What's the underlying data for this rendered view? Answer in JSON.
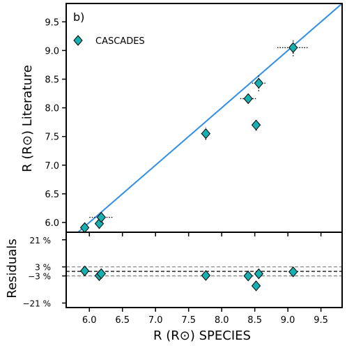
{
  "chart_data": {
    "type": "scatter",
    "panel_label": "b)",
    "xlabel": "R (R⊙) SPECIES",
    "xlim": [
      5.65,
      9.82
    ],
    "x_ticks": [
      6.0,
      6.5,
      7.0,
      7.5,
      8.0,
      8.5,
      9.0,
      9.5
    ],
    "x_tick_labels": [
      "6.0",
      "6.5",
      "7.0",
      "7.5",
      "8.0",
      "8.5",
      "9.0",
      "9.5"
    ],
    "main_panel": {
      "ylabel": "R (R⊙) Literature",
      "ylim": [
        5.83,
        9.82
      ],
      "y_ticks": [
        6.0,
        6.5,
        7.0,
        7.5,
        8.0,
        8.5,
        9.0,
        9.5
      ],
      "y_tick_labels": [
        "6.0",
        "6.5",
        "7.0",
        "7.5",
        "8.0",
        "8.5",
        "9.0",
        "9.5"
      ],
      "one_to_one_line": true,
      "legend": {
        "label": "CASCADES",
        "placement": "top-left"
      },
      "series": [
        {
          "name": "CASCADES",
          "color": "#17b0b0",
          "marker": "diamond",
          "points": [
            {
              "x": 5.93,
              "y": 5.91,
              "xerr": 0.03,
              "yerr": 0.1
            },
            {
              "x": 6.15,
              "y": 5.98,
              "xerr": 0.03,
              "yerr": 0.09
            },
            {
              "x": 6.18,
              "y": 6.09,
              "xerr": 0.18,
              "yerr": 0.08
            },
            {
              "x": 7.76,
              "y": 7.55,
              "xerr": 0.07,
              "yerr": 0.11
            },
            {
              "x": 8.4,
              "y": 8.16,
              "xerr": 0.12,
              "yerr": 0.05
            },
            {
              "x": 8.52,
              "y": 7.7,
              "xerr": 0.04,
              "yerr": 0.1
            },
            {
              "x": 8.56,
              "y": 8.43,
              "xerr": 0.1,
              "yerr": 0.14
            },
            {
              "x": 9.08,
              "y": 9.05,
              "xerr": 0.24,
              "yerr": 0.15
            }
          ]
        }
      ]
    },
    "residual_panel": {
      "ylabel": "Residuals",
      "ylim": [
        -24,
        26
      ],
      "y_ticks": [
        21,
        3,
        -3,
        -21
      ],
      "y_tick_labels": [
        "21 %",
        "3 %",
        "−3 %",
        "−21 %"
      ],
      "reference_lines": [
        {
          "y": 0,
          "style": "dashed",
          "color": "#000000"
        },
        {
          "y": 3,
          "style": "dashed",
          "color": "#808080"
        },
        {
          "y": -3,
          "style": "dashed",
          "color": "#808080"
        }
      ],
      "points": [
        {
          "x": 5.93,
          "y": 0.3
        },
        {
          "x": 6.15,
          "y": -2.8
        },
        {
          "x": 6.18,
          "y": -1.5
        },
        {
          "x": 7.76,
          "y": -2.7
        },
        {
          "x": 8.4,
          "y": -3.0
        },
        {
          "x": 8.52,
          "y": -9.6
        },
        {
          "x": 8.56,
          "y": -1.6
        },
        {
          "x": 9.08,
          "y": -0.3
        }
      ]
    },
    "colors": {
      "marker": "#17b0b0",
      "identity_line": "#2e8ee8"
    }
  }
}
